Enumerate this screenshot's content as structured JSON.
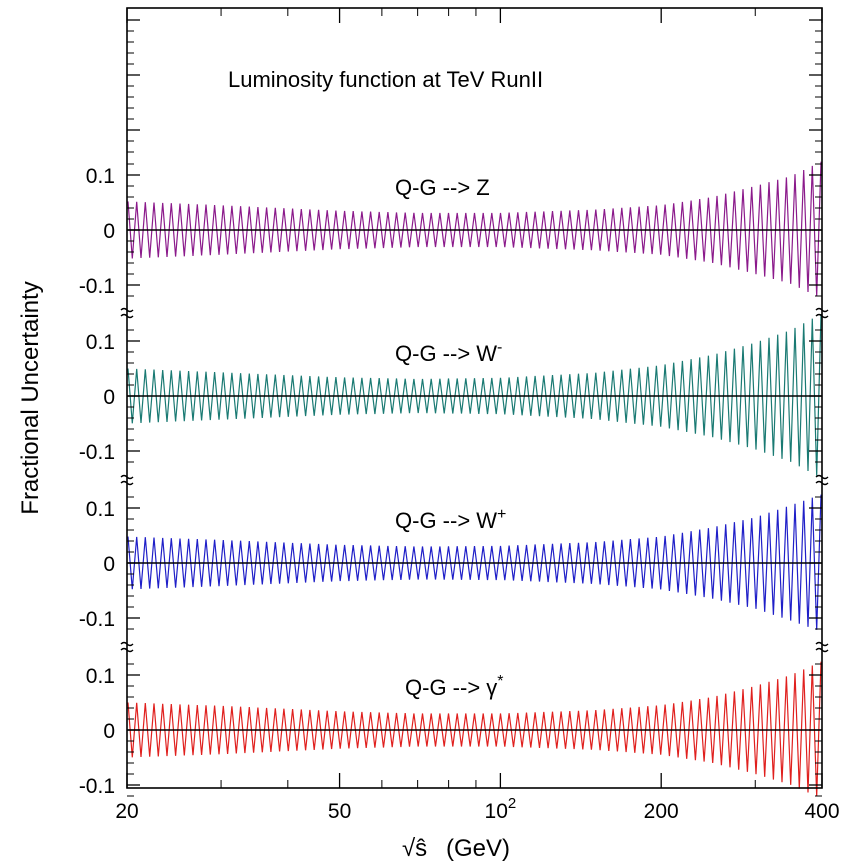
{
  "chart_data": {
    "type": "line",
    "title": "Luminosity function at TeV RunII",
    "ylabel": "Fractional Uncertainty",
    "xlabel_prefix": "√ŝ",
    "xlabel_unit": "(GeV)",
    "xscale": "log",
    "xlim": [
      20,
      400
    ],
    "x_ticks": [
      {
        "value": 20,
        "label": "20"
      },
      {
        "value": 50,
        "label": "50"
      },
      {
        "value": 100,
        "label": "10",
        "sup": "2"
      },
      {
        "value": 200,
        "label": "200"
      },
      {
        "value": 400,
        "label": "400"
      }
    ],
    "y_ticks": [
      {
        "value": 0.1,
        "label": "0.1"
      },
      {
        "value": 0,
        "label": "0"
      },
      {
        "value": -0.1,
        "label": "-0.1"
      }
    ],
    "panel_ylim": [
      -0.12,
      0.12
    ],
    "grid": false,
    "panels": [
      {
        "label": "Q-G --> Z",
        "label_sup": "",
        "color": "#8b1a8b",
        "x": [
          20,
          30,
          50,
          70,
          100,
          150,
          200,
          250,
          300,
          350,
          400
        ],
        "upper": [
          0.052,
          0.045,
          0.035,
          0.031,
          0.031,
          0.037,
          0.045,
          0.06,
          0.08,
          0.098,
          0.125
        ],
        "lower": [
          -0.052,
          -0.045,
          -0.035,
          -0.031,
          -0.031,
          -0.037,
          -0.045,
          -0.06,
          -0.08,
          -0.098,
          -0.125
        ]
      },
      {
        "label": "Q-G --> W",
        "label_sup": "-",
        "color": "#1a7a73",
        "x": [
          20,
          30,
          50,
          70,
          100,
          150,
          200,
          250,
          300,
          350,
          400
        ],
        "upper": [
          0.05,
          0.043,
          0.034,
          0.031,
          0.033,
          0.042,
          0.056,
          0.075,
          0.097,
          0.12,
          0.15
        ],
        "lower": [
          -0.05,
          -0.043,
          -0.034,
          -0.031,
          -0.033,
          -0.042,
          -0.056,
          -0.075,
          -0.097,
          -0.12,
          -0.15
        ]
      },
      {
        "label": "Q-G --> W",
        "label_sup": "+",
        "color": "#1f1fc8",
        "x": [
          20,
          30,
          50,
          70,
          100,
          150,
          200,
          250,
          300,
          350,
          400
        ],
        "upper": [
          0.048,
          0.042,
          0.033,
          0.03,
          0.031,
          0.038,
          0.048,
          0.065,
          0.083,
          0.105,
          0.125
        ],
        "lower": [
          -0.048,
          -0.042,
          -0.033,
          -0.03,
          -0.031,
          -0.038,
          -0.048,
          -0.065,
          -0.083,
          -0.105,
          -0.125
        ]
      },
      {
        "label": "Q-G --> γ",
        "label_sup": "*",
        "color": "#e0201e",
        "x": [
          20,
          30,
          50,
          70,
          100,
          150,
          200,
          250,
          300,
          350,
          400
        ],
        "upper": [
          0.05,
          0.044,
          0.034,
          0.03,
          0.03,
          0.036,
          0.045,
          0.06,
          0.08,
          0.1,
          0.125
        ],
        "lower": [
          -0.05,
          -0.044,
          -0.034,
          -0.03,
          -0.03,
          -0.036,
          -0.045,
          -0.06,
          -0.08,
          -0.1,
          -0.125
        ]
      }
    ]
  }
}
